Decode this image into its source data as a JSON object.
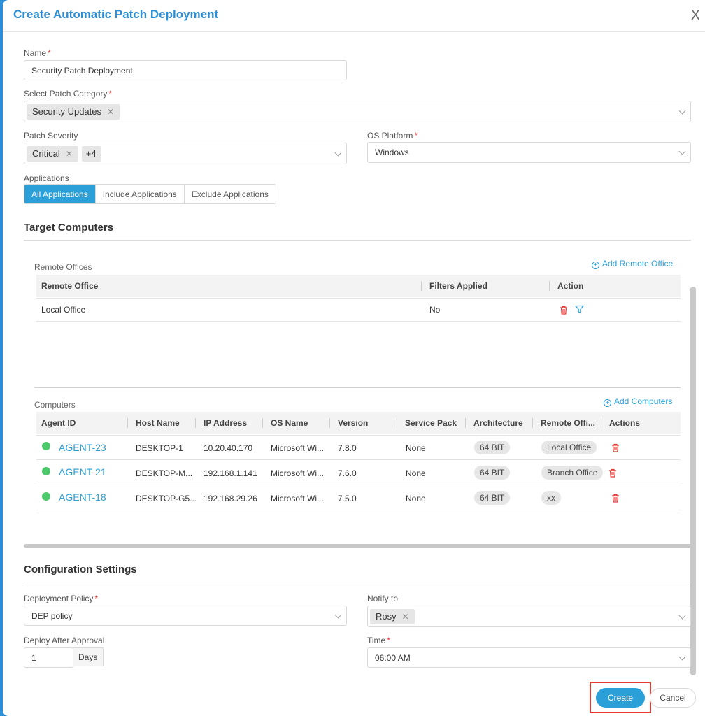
{
  "title": "Create Automatic Patch Deployment",
  "close_glyph": "X",
  "form": {
    "name": {
      "label": "Name",
      "value": "Security Patch Deployment"
    },
    "patch_category": {
      "label": "Select Patch Category",
      "tags": [
        "Security Updates"
      ]
    },
    "patch_severity": {
      "label": "Patch Severity",
      "tags": [
        "Critical"
      ],
      "more": "+4"
    },
    "os_platform": {
      "label": "OS Platform",
      "value": "Windows"
    },
    "applications": {
      "label": "Applications",
      "options": [
        "All Applications",
        "Include Applications",
        "Exclude Applications"
      ],
      "selected": "All Applications"
    }
  },
  "target": {
    "title": "Target Computers",
    "remote_offices": {
      "label": "Remote Offices",
      "add_label": "Add Remote Office",
      "columns": [
        "Remote Office",
        "Filters Applied",
        "Action"
      ],
      "rows": [
        {
          "office": "Local Office",
          "filters": "No"
        }
      ]
    },
    "computers": {
      "label": "Computers",
      "add_label": "Add Computers",
      "columns": [
        "Agent ID",
        "Host Name",
        "IP Address",
        "OS Name",
        "Version",
        "Service Pack",
        "Architecture",
        "Remote Offi...",
        "Actions"
      ],
      "rows": [
        {
          "agent": "AGENT-23",
          "host": "DESKTOP-1",
          "ip": "10.20.40.170",
          "os": "Microsoft Wi...",
          "version": "7.8.0",
          "sp": "None",
          "arch": "64 BIT",
          "office": "Local Office"
        },
        {
          "agent": "AGENT-21",
          "host": "DESKTOP-M...",
          "ip": "192.168.1.141",
          "os": "Microsoft Wi...",
          "version": "7.6.0",
          "sp": "None",
          "arch": "64 BIT",
          "office": "Branch Office"
        },
        {
          "agent": "AGENT-18",
          "host": "DESKTOP-G5...",
          "ip": "192.168.29.26",
          "os": "Microsoft Wi...",
          "version": "7.5.0",
          "sp": "None",
          "arch": "64 BIT",
          "office": "xx"
        }
      ]
    }
  },
  "config": {
    "title": "Configuration Settings",
    "deployment_policy": {
      "label": "Deployment Policy",
      "value": "DEP policy"
    },
    "notify_to": {
      "label": "Notify to",
      "tags": [
        "Rosy"
      ]
    },
    "deploy_after": {
      "label": "Deploy After Approval",
      "value": "1",
      "unit": "Days"
    },
    "time": {
      "label": "Time",
      "value": "06:00 AM"
    }
  },
  "actions": {
    "create": "Create",
    "cancel": "Cancel"
  },
  "colors": {
    "accent": "#2a9fd8",
    "online": "#4cc96b",
    "danger": "#e53935"
  }
}
